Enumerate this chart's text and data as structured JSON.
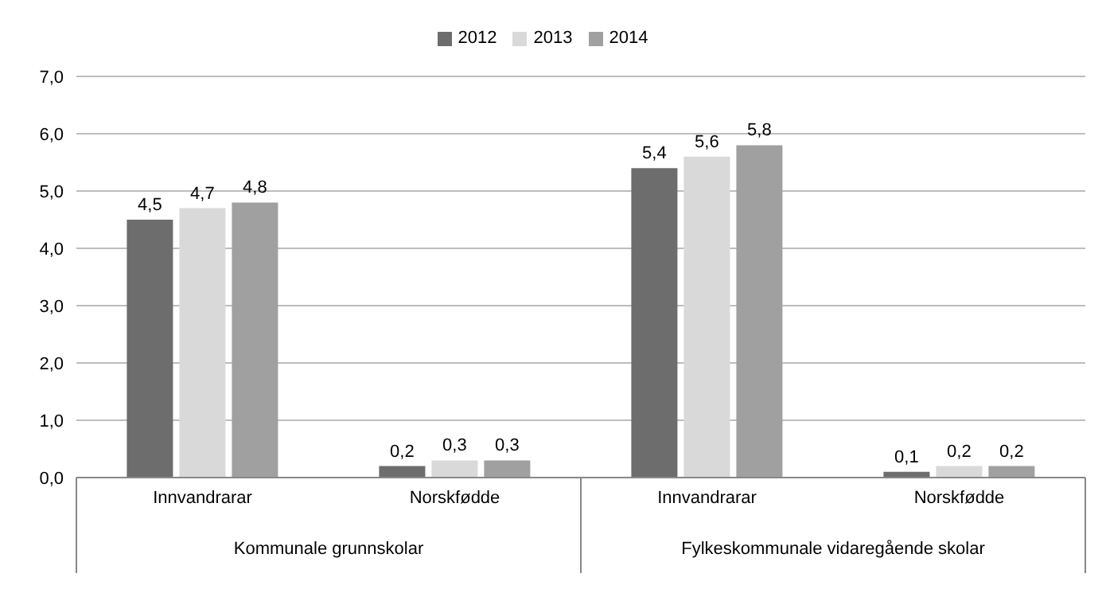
{
  "chart_data": {
    "type": "bar",
    "categories": [
      "Innvandrarar",
      "Norskfødde",
      "Innvandrarar",
      "Norskfødde"
    ],
    "series": [
      {
        "name": "2012",
        "color": "#6d6d6d",
        "values": [
          4.5,
          0.2,
          5.4,
          0.1
        ],
        "value_labels": [
          "4,5",
          "0,2",
          "5,4",
          "0,1"
        ]
      },
      {
        "name": "2013",
        "color": "#d9d9d9",
        "values": [
          4.7,
          0.3,
          5.6,
          0.2
        ],
        "value_labels": [
          "4,7",
          "0,3",
          "5,6",
          "0,2"
        ]
      },
      {
        "name": "2014",
        "color": "#a0a0a0",
        "values": [
          4.8,
          0.3,
          5.8,
          0.2
        ],
        "value_labels": [
          "4,8",
          "0,3",
          "5,8",
          "0,2"
        ]
      }
    ],
    "annotations": [
      "Kommunale grunnskolar",
      "Fylkeskommunale vidaregående skolar"
    ],
    "ylim": [
      0,
      7
    ],
    "yticks": [
      {
        "value": 0,
        "label": "0,0"
      },
      {
        "value": 1,
        "label": "1,0"
      },
      {
        "value": 2,
        "label": "2,0"
      },
      {
        "value": 3,
        "label": "3,0"
      },
      {
        "value": 4,
        "label": "4,0"
      },
      {
        "value": 5,
        "label": "5,0"
      },
      {
        "value": 6,
        "label": "6,0"
      },
      {
        "value": 7,
        "label": "7,0"
      }
    ],
    "grid": "y",
    "legend": "top"
  }
}
